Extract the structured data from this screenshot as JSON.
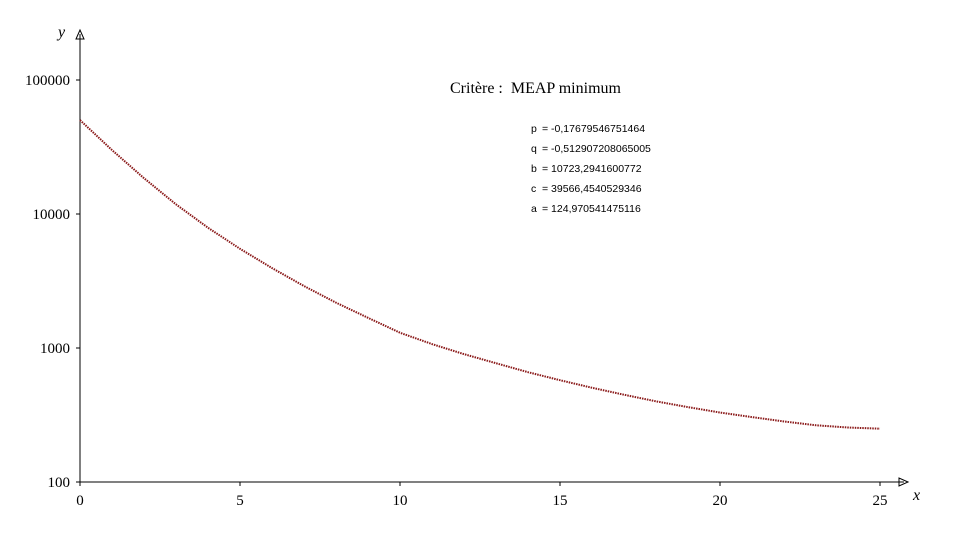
{
  "chart_data": {
    "type": "line",
    "title": "Critère :  MEAP minimum",
    "xlabel": "x",
    "ylabel": "y",
    "x_scale": "linear",
    "y_scale": "log",
    "xlim": [
      0,
      25
    ],
    "ylim": [
      100,
      100000
    ],
    "x_ticks": [
      "0",
      "5",
      "10",
      "15",
      "20",
      "25"
    ],
    "y_ticks": [
      "100",
      "1000",
      "10000",
      "100000"
    ],
    "grid": false,
    "series": [
      {
        "color": "#8b1a1a",
        "x": [
          0,
          1,
          2,
          3,
          4,
          5,
          6,
          7,
          8,
          9,
          10,
          11,
          12,
          13,
          14,
          15,
          16,
          17,
          18,
          19,
          20,
          21,
          22,
          23,
          24,
          25
        ],
        "y": [
          50200,
          30000,
          18500,
          11800,
          7900,
          5500,
          3950,
          2900,
          2180,
          1680,
          1300,
          1070,
          900,
          770,
          660,
          575,
          505,
          448,
          400,
          362,
          330,
          305,
          283,
          265,
          255,
          250
        ]
      }
    ],
    "annotations": [
      {
        "label": "p",
        "value": "= -0,17679546751464"
      },
      {
        "label": "q",
        "value": "= -0,512907208065005"
      },
      {
        "label": "b",
        "value": "= 10723,2941600772"
      },
      {
        "label": "c",
        "value": "= 39566,4540529346"
      },
      {
        "label": "a",
        "value": "= 124,970541475116"
      }
    ]
  }
}
